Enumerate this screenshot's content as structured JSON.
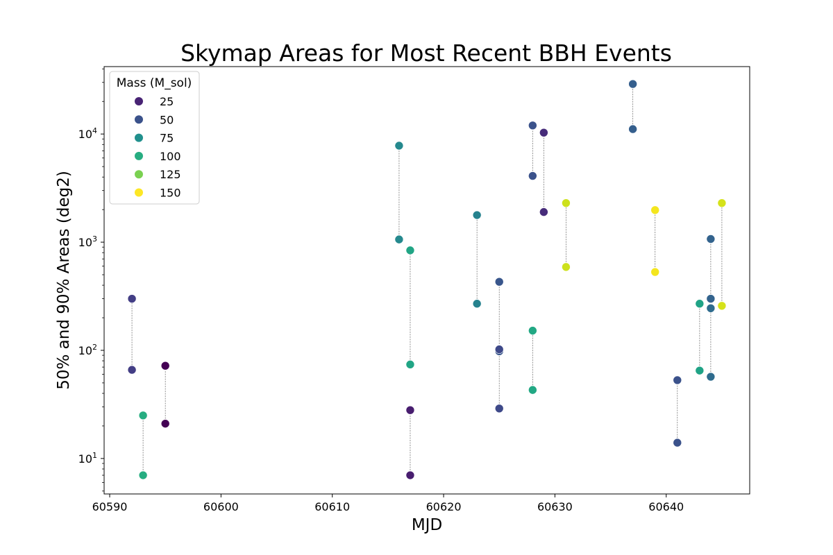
{
  "chart_data": {
    "type": "scatter",
    "title": "Skymap Areas for Most Recent BBH Events",
    "xlabel": "MJD",
    "ylabel": "50% and 90% Areas (deg2)",
    "xlim": [
      60589.5,
      60647.5
    ],
    "ylim": [
      4.7,
      42000
    ],
    "yscale": "log",
    "x_ticks": [
      {
        "value": 60590,
        "label": "60590"
      },
      {
        "value": 60600,
        "label": "60600"
      },
      {
        "value": 60610,
        "label": "60610"
      },
      {
        "value": 60620,
        "label": "60620"
      },
      {
        "value": 60630,
        "label": "60630"
      },
      {
        "value": 60640,
        "label": "60640"
      }
    ],
    "y_ticks": [
      {
        "value": 10,
        "base": "10",
        "exp": "1"
      },
      {
        "value": 100,
        "base": "10",
        "exp": "2"
      },
      {
        "value": 1000,
        "base": "10",
        "exp": "3"
      },
      {
        "value": 10000,
        "base": "10",
        "exp": "4"
      }
    ],
    "legend": {
      "title": "Mass (M_sol)",
      "placement": "top-left",
      "entries": [
        {
          "label": "25",
          "color": "#482374"
        },
        {
          "label": "50",
          "color": "#3b528b"
        },
        {
          "label": "75",
          "color": "#21908d"
        },
        {
          "label": "100",
          "color": "#27ad81"
        },
        {
          "label": "125",
          "color": "#7ad151"
        },
        {
          "label": "150",
          "color": "#fde725"
        }
      ]
    },
    "events": [
      {
        "mjd": 60592,
        "area50": 66,
        "area90": 300,
        "color": "#433e85"
      },
      {
        "mjd": 60593,
        "area50": 7,
        "area90": 25,
        "color": "#26ad81"
      },
      {
        "mjd": 60595,
        "area50": 21,
        "area90": 72,
        "color": "#440154"
      },
      {
        "mjd": 60616,
        "area50": 1060,
        "area90": 7800,
        "color": "#25898e"
      },
      {
        "mjd": 60617,
        "area50": 74,
        "area90": 840,
        "color": "#21a585"
      },
      {
        "mjd": 60617,
        "area50": 7,
        "area90": 28,
        "color": "#481d6f"
      },
      {
        "mjd": 60623,
        "area50": 270,
        "area90": 1780,
        "color": "#26828e"
      },
      {
        "mjd": 60625,
        "area50": 98,
        "area90": 430,
        "color": "#39568c"
      },
      {
        "mjd": 60625,
        "area50": 29,
        "area90": 102,
        "color": "#3e4989"
      },
      {
        "mjd": 60628,
        "area50": 4100,
        "area90": 12000,
        "color": "#3b528b"
      },
      {
        "mjd": 60628,
        "area50": 43,
        "area90": 152,
        "color": "#22a884"
      },
      {
        "mjd": 60629,
        "area50": 1900,
        "area90": 10300,
        "color": "#472c7a"
      },
      {
        "mjd": 60631,
        "area50": 590,
        "area90": 2300,
        "color": "#cde11d"
      },
      {
        "mjd": 60637,
        "area50": 11100,
        "area90": 29000,
        "color": "#355f8d"
      },
      {
        "mjd": 60639,
        "area50": 530,
        "area90": 1980,
        "color": "#f4e61e"
      },
      {
        "mjd": 60641,
        "area50": 14,
        "area90": 53,
        "color": "#3b528b"
      },
      {
        "mjd": 60643,
        "area50": 65,
        "area90": 270,
        "color": "#20a386"
      },
      {
        "mjd": 60644,
        "area50": 300,
        "area90": 1070,
        "color": "#33638d"
      },
      {
        "mjd": 60644,
        "area50": 57,
        "area90": 245,
        "color": "#2f6c8e"
      },
      {
        "mjd": 60645,
        "area50": 258,
        "area90": 2300,
        "color": "#d5e21a"
      }
    ]
  }
}
